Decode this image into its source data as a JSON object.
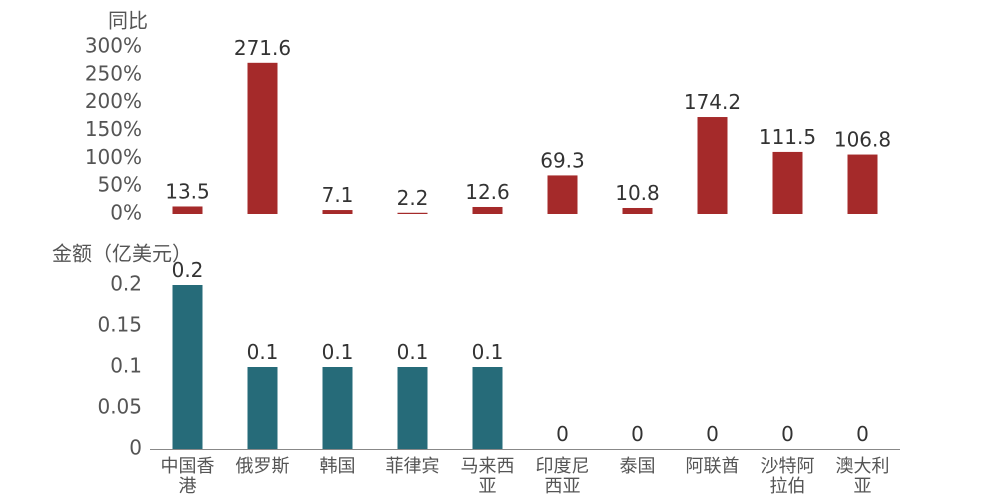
{
  "chart_data": {
    "type": "bar",
    "categories": [
      [
        "中国香",
        "港"
      ],
      [
        "俄罗斯"
      ],
      [
        "韩国"
      ],
      [
        "菲律宾"
      ],
      [
        "马来西",
        "亚"
      ],
      [
        "印度尼",
        "西亚"
      ],
      [
        "泰国"
      ],
      [
        "阿联酋"
      ],
      [
        "沙特阿",
        "拉伯"
      ],
      [
        "澳大利",
        "亚"
      ]
    ],
    "panels": [
      {
        "id": "yoy",
        "ylabel": "同比",
        "ylim": [
          0,
          300
        ],
        "yticks": [
          0,
          50,
          100,
          150,
          200,
          250,
          300
        ],
        "ytick_labels": [
          "0%",
          "50%",
          "100%",
          "150%",
          "200%",
          "250%",
          "300%"
        ],
        "color": "#a52a2a",
        "values": [
          13.5,
          271.6,
          7.1,
          2.2,
          12.6,
          69.3,
          10.8,
          174.2,
          111.5,
          106.8
        ],
        "value_labels": [
          "13.5",
          "271.6",
          "7.1",
          "2.2",
          "12.6",
          "69.3",
          "10.8",
          "174.2",
          "111.5",
          "106.8"
        ]
      },
      {
        "id": "amount",
        "ylabel": "金额（亿美元）",
        "ylim": [
          0,
          0.2
        ],
        "yticks": [
          0,
          0.05,
          0.1,
          0.15,
          0.2
        ],
        "ytick_labels": [
          "0",
          "0.05",
          "0.1",
          "0.15",
          "0.2"
        ],
        "color": "#266b79",
        "values": [
          0.2,
          0.1,
          0.1,
          0.1,
          0.1,
          0,
          0,
          0,
          0,
          0
        ],
        "value_labels": [
          "0.2",
          "0.1",
          "0.1",
          "0.1",
          "0.1",
          "0",
          "0",
          "0",
          "0",
          "0"
        ]
      }
    ]
  }
}
